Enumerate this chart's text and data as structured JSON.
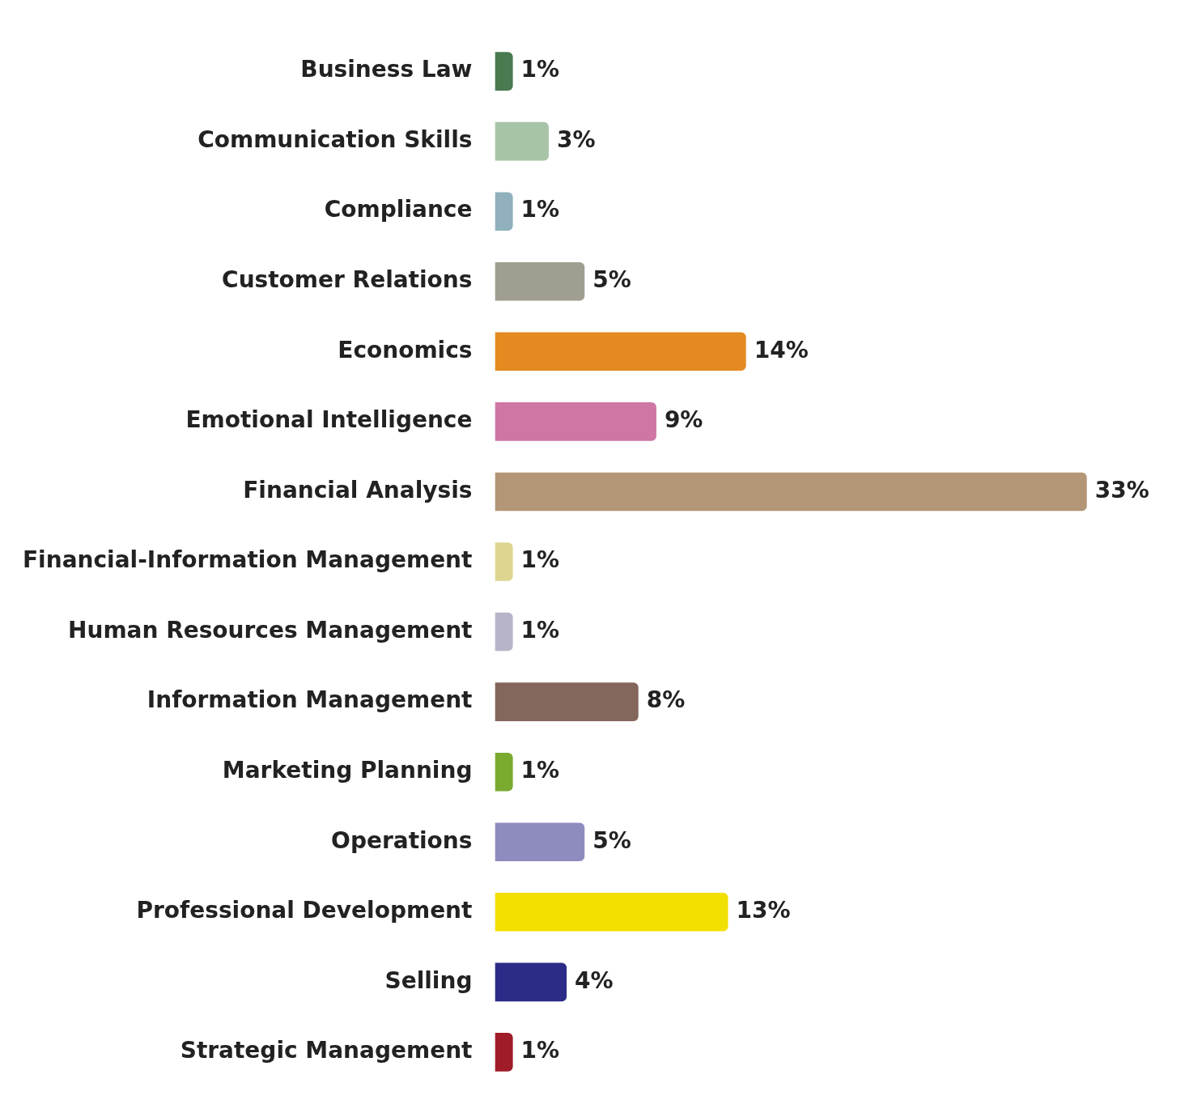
{
  "chart_data": {
    "type": "bar",
    "orientation": "horizontal",
    "categories": [
      "Business Law",
      "Communication Skills",
      "Compliance",
      "Customer Relations",
      "Economics",
      "Emotional Intelligence",
      "Financial Analysis",
      "Financial-Information Management",
      "Human Resources Management",
      "Information Management",
      "Marketing Planning",
      "Operations",
      "Professional Development",
      "Selling",
      "Strategic Management"
    ],
    "values": [
      1,
      3,
      1,
      5,
      14,
      9,
      33,
      1,
      1,
      8,
      1,
      5,
      13,
      4,
      1
    ],
    "colors": [
      "#4a7a50",
      "#a8c4a8",
      "#8fb0bc",
      "#a09e90",
      "#e38a20",
      "#cf76a4",
      "#b39676",
      "#ddd590",
      "#b8b4c8",
      "#84675c",
      "#7aaa30",
      "#8e8cbf",
      "#f2e000",
      "#2c2c88",
      "#a01c28"
    ],
    "value_labels": [
      "1%",
      "3%",
      "1%",
      "5%",
      "14%",
      "9%",
      "33%",
      "1%",
      "1%",
      "8%",
      "1%",
      "5%",
      "13%",
      "4%",
      "1%"
    ]
  }
}
